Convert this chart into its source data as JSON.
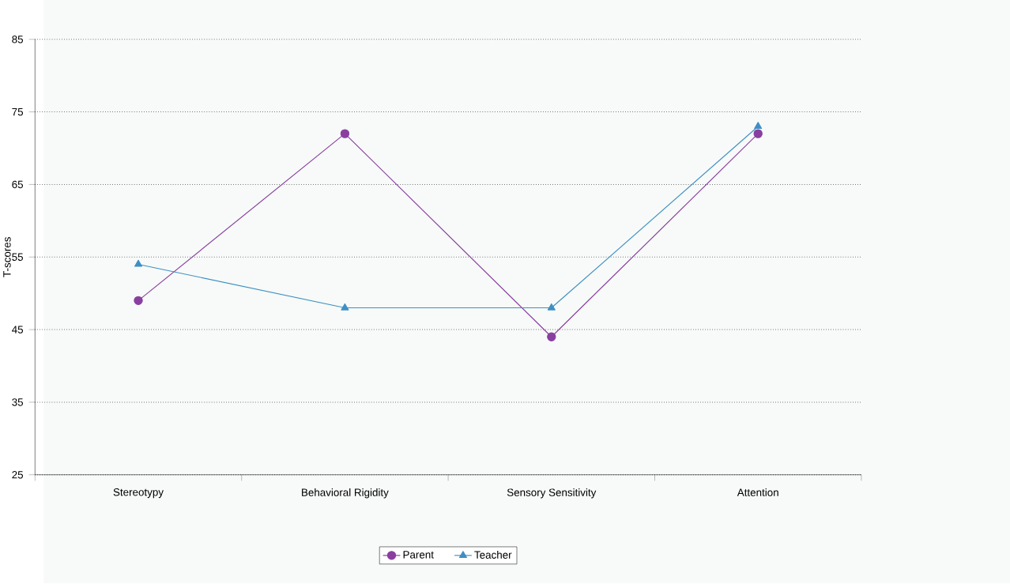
{
  "chart_data": {
    "type": "line",
    "ylabel": "T-scores",
    "categories": [
      "Stereotypy",
      "Behavioral Rigidity",
      "Sensory Sensitivity",
      "Attention"
    ],
    "series": [
      {
        "name": "Parent",
        "color": "#8a3fa0",
        "marker": "circle",
        "values": [
          49,
          72,
          44,
          72
        ]
      },
      {
        "name": "Teacher",
        "color": "#3f8fc4",
        "marker": "triangle",
        "values": [
          54,
          48,
          48,
          73
        ]
      }
    ],
    "ylim": [
      25,
      85
    ],
    "yticks": [
      25,
      35,
      45,
      55,
      65,
      75,
      85
    ],
    "grid": "y",
    "legend": "bottom",
    "line_style": "solid"
  }
}
